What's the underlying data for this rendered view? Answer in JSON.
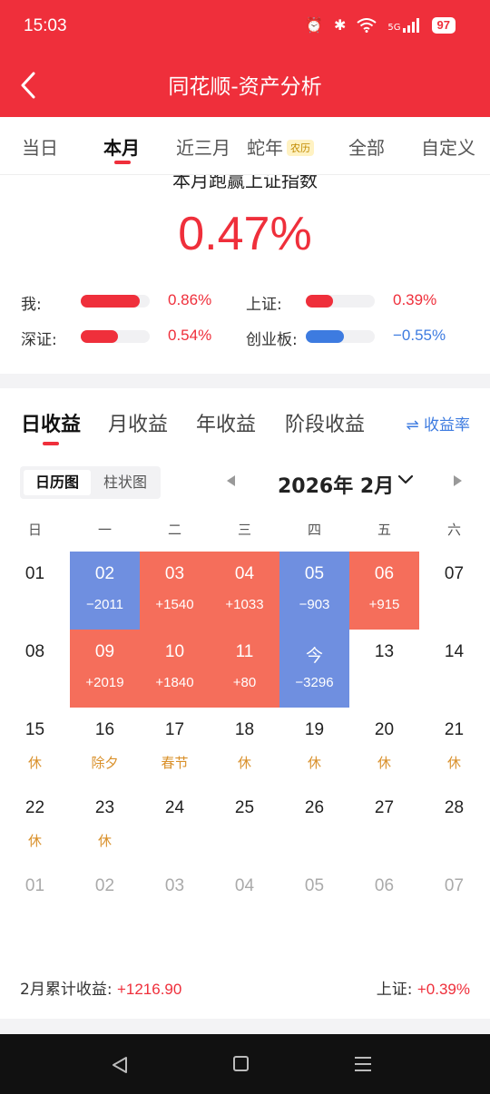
{
  "status": {
    "time": "15:03",
    "battery": "97",
    "net": "5G"
  },
  "nav": {
    "title": "同花顺-资产分析"
  },
  "tabs": [
    {
      "label": "当日"
    },
    {
      "label": "本月"
    },
    {
      "label": "近三月"
    },
    {
      "label": "蛇年",
      "tag": "农历"
    },
    {
      "label": "全部"
    },
    {
      "label": "自定义"
    }
  ],
  "summary": {
    "title": "本月跑赢上证指数",
    "value": "0.47%",
    "comparisons": [
      {
        "label": "我:",
        "value": "0.86%",
        "level": 0.86,
        "color": "#ef2f3b"
      },
      {
        "label": "上证:",
        "value": "0.39%",
        "level": 0.39,
        "color": "#ef2f3b"
      },
      {
        "label": "深证:",
        "value": "0.54%",
        "level": 0.54,
        "color": "#ef2f3b"
      },
      {
        "label": "创业板:",
        "value": "−0.55%",
        "level": 0.55,
        "color": "#3d7be0"
      }
    ]
  },
  "period_tabs": [
    {
      "label": "日收益"
    },
    {
      "label": "月收益"
    },
    {
      "label": "年收益"
    },
    {
      "label": "阶段收益"
    }
  ],
  "rate_link": "⇌ 收益率",
  "view_toggle": [
    {
      "label": "日历图"
    },
    {
      "label": "柱状图"
    }
  ],
  "month": {
    "label": "2026年 2月"
  },
  "weekdays": [
    "日",
    "一",
    "二",
    "三",
    "四",
    "五",
    "六"
  ],
  "calendar": [
    {
      "day": "01",
      "sub": "",
      "kind": ""
    },
    {
      "day": "02",
      "sub": "−2011",
      "kind": "loss"
    },
    {
      "day": "03",
      "sub": "+1540",
      "kind": "gain"
    },
    {
      "day": "04",
      "sub": "+1033",
      "kind": "gain"
    },
    {
      "day": "05",
      "sub": "−903",
      "kind": "loss"
    },
    {
      "day": "06",
      "sub": "+915",
      "kind": "gain"
    },
    {
      "day": "07",
      "sub": "",
      "kind": ""
    },
    {
      "day": "08",
      "sub": "",
      "kind": ""
    },
    {
      "day": "09",
      "sub": "+2019",
      "kind": "gain"
    },
    {
      "day": "10",
      "sub": "+1840",
      "kind": "gain"
    },
    {
      "day": "11",
      "sub": "+80",
      "kind": "gain"
    },
    {
      "day": "今",
      "sub": "−3296",
      "kind": "loss"
    },
    {
      "day": "13",
      "sub": "",
      "kind": ""
    },
    {
      "day": "14",
      "sub": "",
      "kind": ""
    },
    {
      "day": "15",
      "sub": "休",
      "kind": "holiday"
    },
    {
      "day": "16",
      "sub": "除夕",
      "kind": "holiday"
    },
    {
      "day": "17",
      "sub": "春节",
      "kind": "holiday"
    },
    {
      "day": "18",
      "sub": "休",
      "kind": "holiday"
    },
    {
      "day": "19",
      "sub": "休",
      "kind": "holiday"
    },
    {
      "day": "20",
      "sub": "休",
      "kind": "holiday"
    },
    {
      "day": "21",
      "sub": "休",
      "kind": "holiday"
    },
    {
      "day": "22",
      "sub": "休",
      "kind": "holiday"
    },
    {
      "day": "23",
      "sub": "休",
      "kind": "holiday"
    },
    {
      "day": "24",
      "sub": "",
      "kind": ""
    },
    {
      "day": "25",
      "sub": "",
      "kind": ""
    },
    {
      "day": "26",
      "sub": "",
      "kind": ""
    },
    {
      "day": "27",
      "sub": "",
      "kind": ""
    },
    {
      "day": "28",
      "sub": "",
      "kind": ""
    },
    {
      "day": "01",
      "sub": "",
      "kind": "next"
    },
    {
      "day": "02",
      "sub": "",
      "kind": "next"
    },
    {
      "day": "03",
      "sub": "",
      "kind": "next"
    },
    {
      "day": "04",
      "sub": "",
      "kind": "next"
    },
    {
      "day": "05",
      "sub": "",
      "kind": "next"
    },
    {
      "day": "06",
      "sub": "",
      "kind": "next"
    },
    {
      "day": "07",
      "sub": "",
      "kind": "next"
    }
  ],
  "footer": {
    "cum_label": "2月累计收益:",
    "cum_value": "+1216.90",
    "index_label": "上证:",
    "index_value": "+0.39%"
  },
  "colors": {
    "brand": "#ef2f3b",
    "gain": "#f56e5b",
    "loss": "#6f8fe0",
    "holiday": "#d9902a",
    "link": "#3d7be0"
  }
}
